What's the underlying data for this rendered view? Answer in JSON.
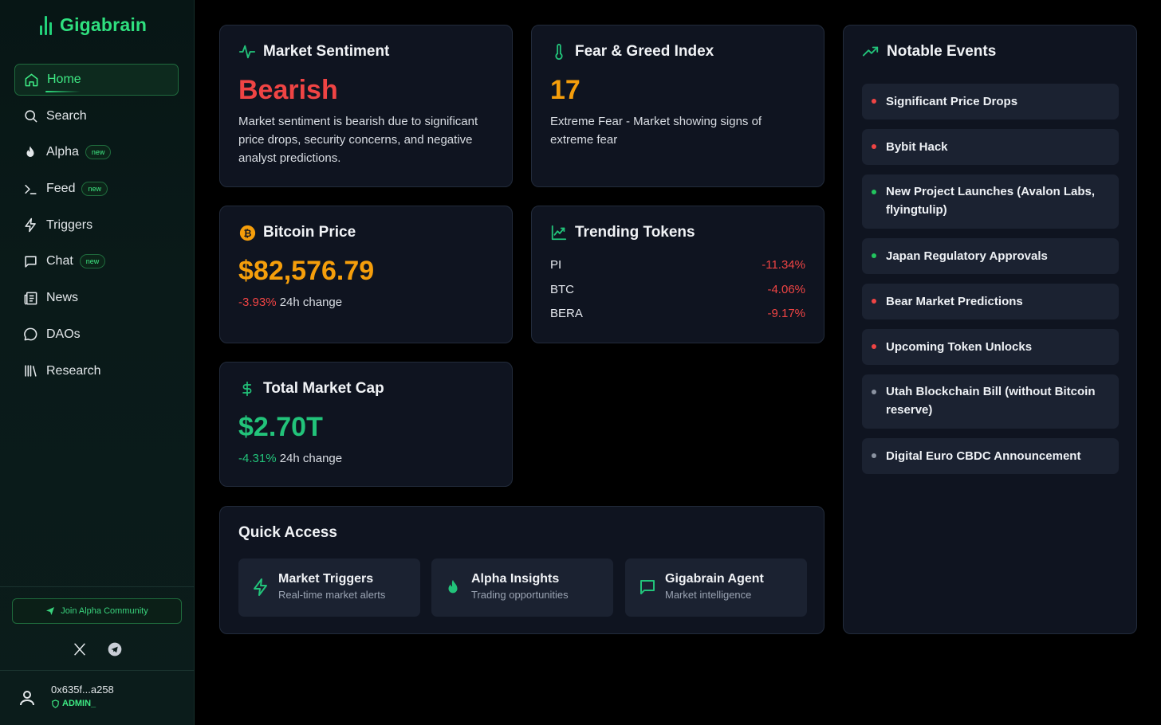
{
  "brand": {
    "name": "Gigabrain",
    "accent": "#2fe07f"
  },
  "sidebar": {
    "items": [
      {
        "label": "Home",
        "icon": "home-icon",
        "active": true
      },
      {
        "label": "Search",
        "icon": "search-icon"
      },
      {
        "label": "Alpha",
        "icon": "flame-icon",
        "badge": "new"
      },
      {
        "label": "Feed",
        "icon": "terminal-icon",
        "badge": "new"
      },
      {
        "label": "Triggers",
        "icon": "bolt-icon"
      },
      {
        "label": "Chat",
        "icon": "message-square-icon",
        "badge": "new"
      },
      {
        "label": "News",
        "icon": "newspaper-icon"
      },
      {
        "label": "DAOs",
        "icon": "message-circle-icon"
      },
      {
        "label": "Research",
        "icon": "library-icon"
      }
    ],
    "join_label": "Join Alpha Community",
    "socials": [
      "x-icon",
      "telegram-icon"
    ],
    "user": {
      "address": "0x635f...a258",
      "role": "ADMIN_"
    }
  },
  "sentiment": {
    "title": "Market Sentiment",
    "value": "Bearish",
    "description": "Market sentiment is bearish due to significant price drops, security concerns, and negative analyst predictions.",
    "color": "#ef4444"
  },
  "fear_greed": {
    "title": "Fear & Greed Index",
    "value": "17",
    "description": "Extreme Fear - Market showing signs of extreme fear",
    "color": "#f59e0b"
  },
  "bitcoin": {
    "title": "Bitcoin Price",
    "value": "$82,576.79",
    "change": "-3.93%",
    "change_label": "24h change"
  },
  "trending": {
    "title": "Trending Tokens",
    "tokens": [
      {
        "symbol": "PI",
        "change": "-11.34%"
      },
      {
        "symbol": "BTC",
        "change": "-4.06%"
      },
      {
        "symbol": "BERA",
        "change": "-9.17%"
      }
    ]
  },
  "market_cap": {
    "title": "Total Market Cap",
    "value": "$2.70T",
    "change": "-4.31%",
    "change_label": "24h change"
  },
  "quick_access": {
    "title": "Quick Access",
    "items": [
      {
        "title": "Market Triggers",
        "subtitle": "Real-time market alerts",
        "icon": "bolt-icon"
      },
      {
        "title": "Alpha Insights",
        "subtitle": "Trading opportunities",
        "icon": "flame-icon"
      },
      {
        "title": "Gigabrain Agent",
        "subtitle": "Market intelligence",
        "icon": "message-square-icon"
      }
    ]
  },
  "events": {
    "title": "Notable Events",
    "items": [
      {
        "label": "Significant Price Drops",
        "status": "red"
      },
      {
        "label": "Bybit Hack",
        "status": "red"
      },
      {
        "label": "New Project Launches (Avalon Labs, flyingtulip)",
        "status": "green"
      },
      {
        "label": "Japan Regulatory Approvals",
        "status": "green"
      },
      {
        "label": "Bear Market Predictions",
        "status": "red"
      },
      {
        "label": "Upcoming Token Unlocks",
        "status": "red"
      },
      {
        "label": "Utah Blockchain Bill (without Bitcoin reserve)",
        "status": "gray"
      },
      {
        "label": "Digital Euro CBDC Announcement",
        "status": "gray"
      }
    ]
  },
  "colors": {
    "red": "#ef4444",
    "green": "#22c55e",
    "gray": "#8b93a1",
    "orange": "#f59e0b",
    "teal": "#22c37a"
  }
}
